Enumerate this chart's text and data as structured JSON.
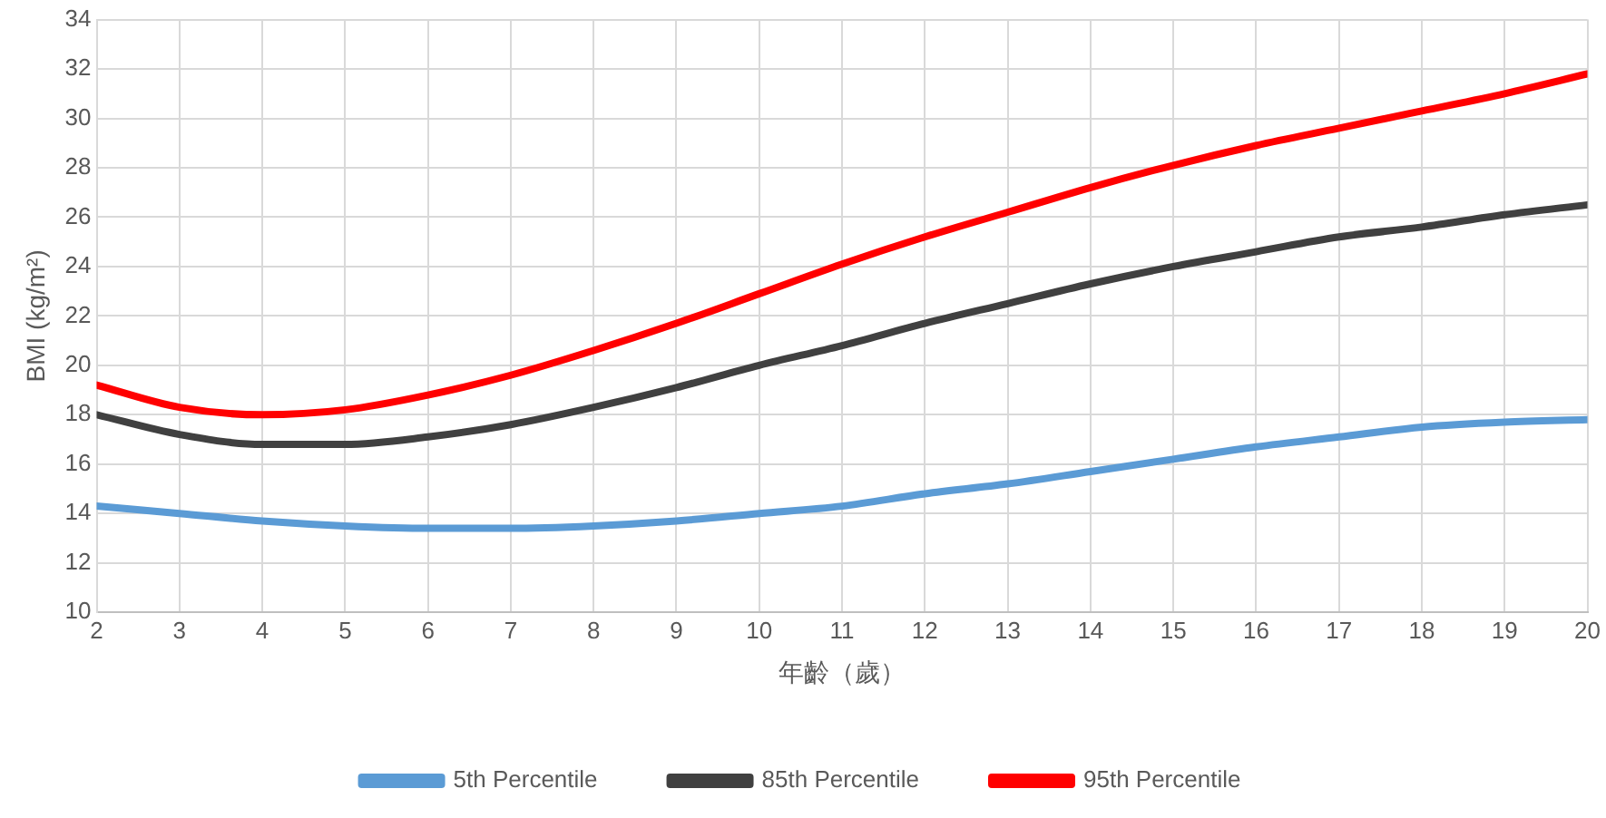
{
  "chart_data": {
    "type": "line",
    "xlabel": "年齡（歲）",
    "ylabel": "BMI (kg/m²)",
    "x": [
      2,
      3,
      4,
      5,
      6,
      7,
      8,
      9,
      10,
      11,
      12,
      13,
      14,
      15,
      16,
      17,
      18,
      19,
      20
    ],
    "xlim": [
      2,
      20
    ],
    "xticks": [
      2,
      3,
      4,
      5,
      6,
      7,
      8,
      9,
      10,
      11,
      12,
      13,
      14,
      15,
      16,
      17,
      18,
      19,
      20
    ],
    "ylim": [
      10,
      34
    ],
    "yticks": [
      10,
      12,
      14,
      16,
      18,
      20,
      22,
      24,
      26,
      28,
      30,
      32,
      34
    ],
    "grid": true,
    "legend": "bottom",
    "marker": "none",
    "line_style": "solid",
    "series": [
      {
        "name": "5th Percentile",
        "color": "#5b9bd5",
        "values": [
          14.3,
          14.0,
          13.7,
          13.5,
          13.4,
          13.4,
          13.5,
          13.7,
          14.0,
          14.3,
          14.8,
          15.2,
          15.7,
          16.2,
          16.7,
          17.1,
          17.5,
          17.7,
          17.8
        ]
      },
      {
        "name": "85th Percentile",
        "color": "#404040",
        "values": [
          18.0,
          17.2,
          16.8,
          16.8,
          17.1,
          17.6,
          18.3,
          19.1,
          20.0,
          20.8,
          21.7,
          22.5,
          23.3,
          24.0,
          24.6,
          25.2,
          25.6,
          26.1,
          26.5
        ]
      },
      {
        "name": "95th Percentile",
        "color": "#ff0000",
        "values": [
          19.2,
          18.3,
          18.0,
          18.2,
          18.8,
          19.6,
          20.6,
          21.7,
          22.9,
          24.1,
          25.2,
          26.2,
          27.2,
          28.1,
          28.9,
          29.6,
          30.3,
          31.0,
          31.8
        ]
      }
    ]
  }
}
